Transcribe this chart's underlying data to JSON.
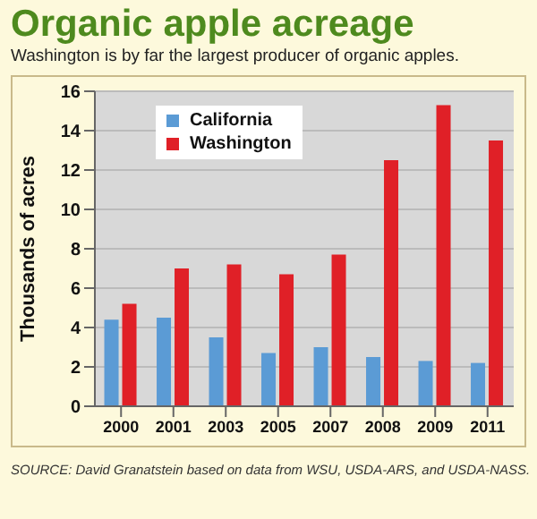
{
  "chart_data": {
    "type": "bar",
    "title": "Organic apple acreage",
    "subtitle": "Washington is by far the largest producer of organic apples.",
    "ylabel": "Thousands of acres",
    "categories": [
      "2000",
      "2001",
      "2003",
      "2005",
      "2007",
      "2008",
      "2009",
      "2011"
    ],
    "series": [
      {
        "name": "California",
        "color": "#5b9bd5",
        "values": [
          4.4,
          4.5,
          3.5,
          2.7,
          3.0,
          2.5,
          2.3,
          2.2
        ]
      },
      {
        "name": "Washington",
        "color": "#e02027",
        "values": [
          5.2,
          7.0,
          7.2,
          6.7,
          7.7,
          12.5,
          15.3,
          13.5
        ]
      }
    ],
    "ylim": [
      0,
      16
    ],
    "yticks": [
      0,
      2,
      4,
      6,
      8,
      10,
      12,
      14,
      16
    ],
    "grid": "y",
    "legend": "top left",
    "annotations": [
      "SOURCE: David Granatstein based on data from WSU, USDA-ARS, and USDA-NASS."
    ]
  }
}
